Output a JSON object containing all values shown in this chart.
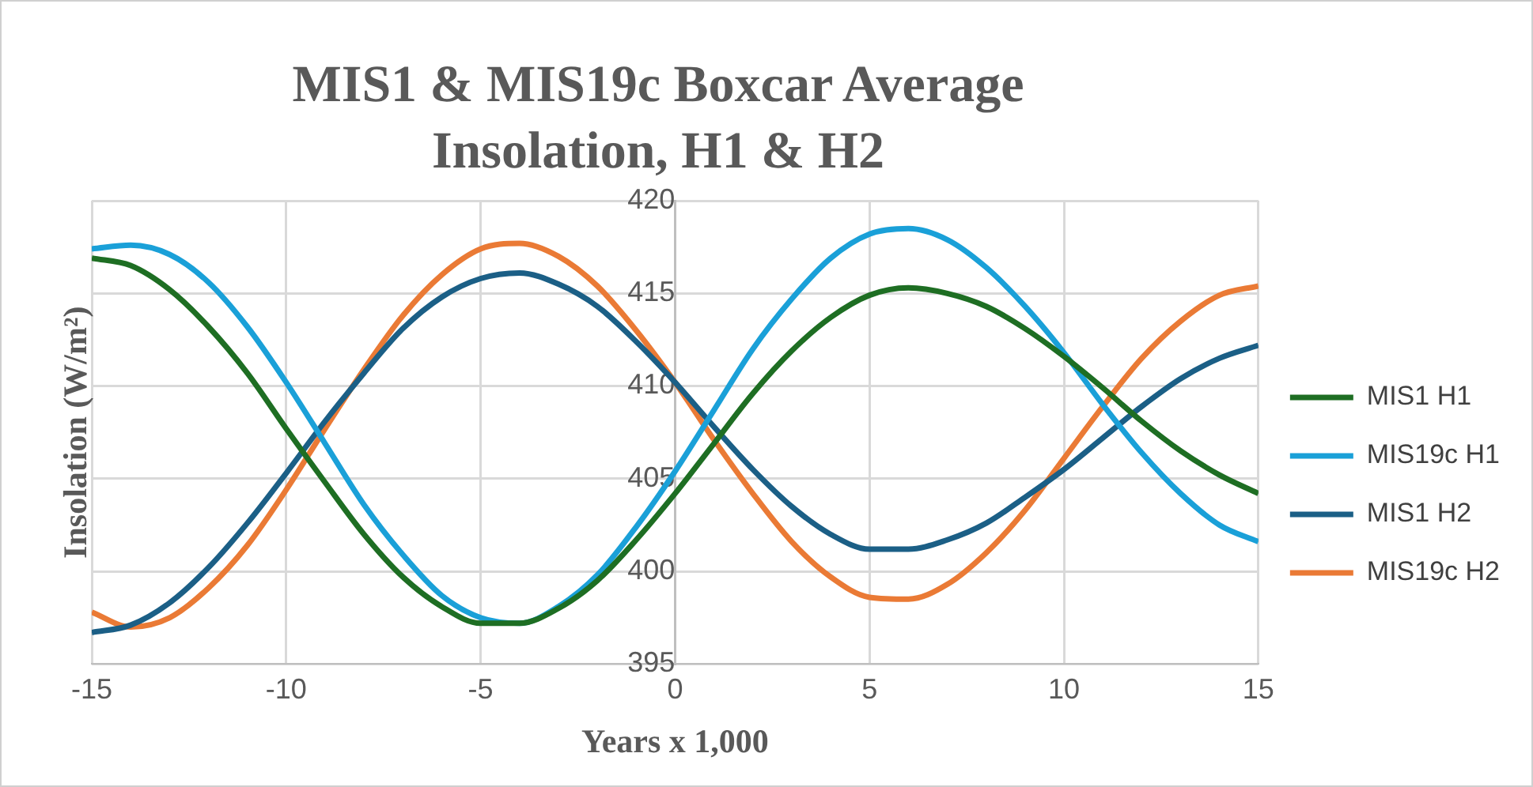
{
  "chart_data": {
    "type": "line",
    "title": "MIS1 & MIS19c Boxcar Average Insolation, H1 & H2",
    "xlabel": "Years x 1,000",
    "ylabel": "Insolation (W/m²)",
    "x": [
      -15,
      -14,
      -13,
      -12,
      -11,
      -10,
      -9,
      -8,
      -7,
      -6,
      -5,
      -4,
      -3,
      -2,
      -1,
      0,
      1,
      2,
      3,
      4,
      5,
      6,
      7,
      8,
      9,
      10,
      11,
      12,
      13,
      14,
      15
    ],
    "series": [
      {
        "name": "MIS1 H1",
        "color": "#1e6e23",
        "values": [
          416.9,
          416.5,
          415.2,
          413.2,
          410.7,
          407.7,
          404.8,
          402.0,
          399.7,
          398.1,
          397.2,
          397.2,
          398.0,
          399.5,
          401.7,
          404.2,
          406.9,
          409.6,
          411.9,
          413.7,
          414.9,
          415.3,
          415.0,
          414.3,
          413.1,
          411.6,
          409.9,
          408.1,
          406.5,
          405.2,
          404.2
        ]
      },
      {
        "name": "MIS19c H1",
        "color": "#1aa0d8",
        "values": [
          417.4,
          417.6,
          417.1,
          415.6,
          413.2,
          410.2,
          406.9,
          403.6,
          400.9,
          398.7,
          397.5,
          397.2,
          398.1,
          399.8,
          402.4,
          405.4,
          408.7,
          412.0,
          414.7,
          416.9,
          418.2,
          418.5,
          417.9,
          416.4,
          414.3,
          411.8,
          409.0,
          406.4,
          404.2,
          402.5,
          401.6
        ]
      },
      {
        "name": "MIS1 H2",
        "color": "#1b5f86",
        "values": [
          396.7,
          397.1,
          398.3,
          400.2,
          402.6,
          405.3,
          408.1,
          410.7,
          413.1,
          414.8,
          415.8,
          416.1,
          415.5,
          414.3,
          412.4,
          410.2,
          407.8,
          405.5,
          403.5,
          402.0,
          401.2,
          401.2,
          401.7,
          402.6,
          404.0,
          405.5,
          407.2,
          408.9,
          410.4,
          411.5,
          412.2
        ]
      },
      {
        "name": "MIS19c H2",
        "color": "#ea7a35",
        "values": [
          397.8,
          397.0,
          397.5,
          399.1,
          401.4,
          404.4,
          407.7,
          410.9,
          413.8,
          416.0,
          417.4,
          417.7,
          417.0,
          415.4,
          413.0,
          410.2,
          407.1,
          404.2,
          401.6,
          399.7,
          398.6,
          398.5,
          399.3,
          401.0,
          403.3,
          406.1,
          408.9,
          411.5,
          413.5,
          414.9,
          415.4
        ]
      }
    ],
    "xlim": [
      -15,
      15
    ],
    "xticks": [
      -15,
      -10,
      -5,
      0,
      5,
      10,
      15
    ],
    "ylim": [
      395,
      420
    ],
    "yticks": [
      395,
      400,
      405,
      410,
      415,
      420
    ],
    "grid": true,
    "legend": "right",
    "marker": "none",
    "line_style": "solid"
  }
}
